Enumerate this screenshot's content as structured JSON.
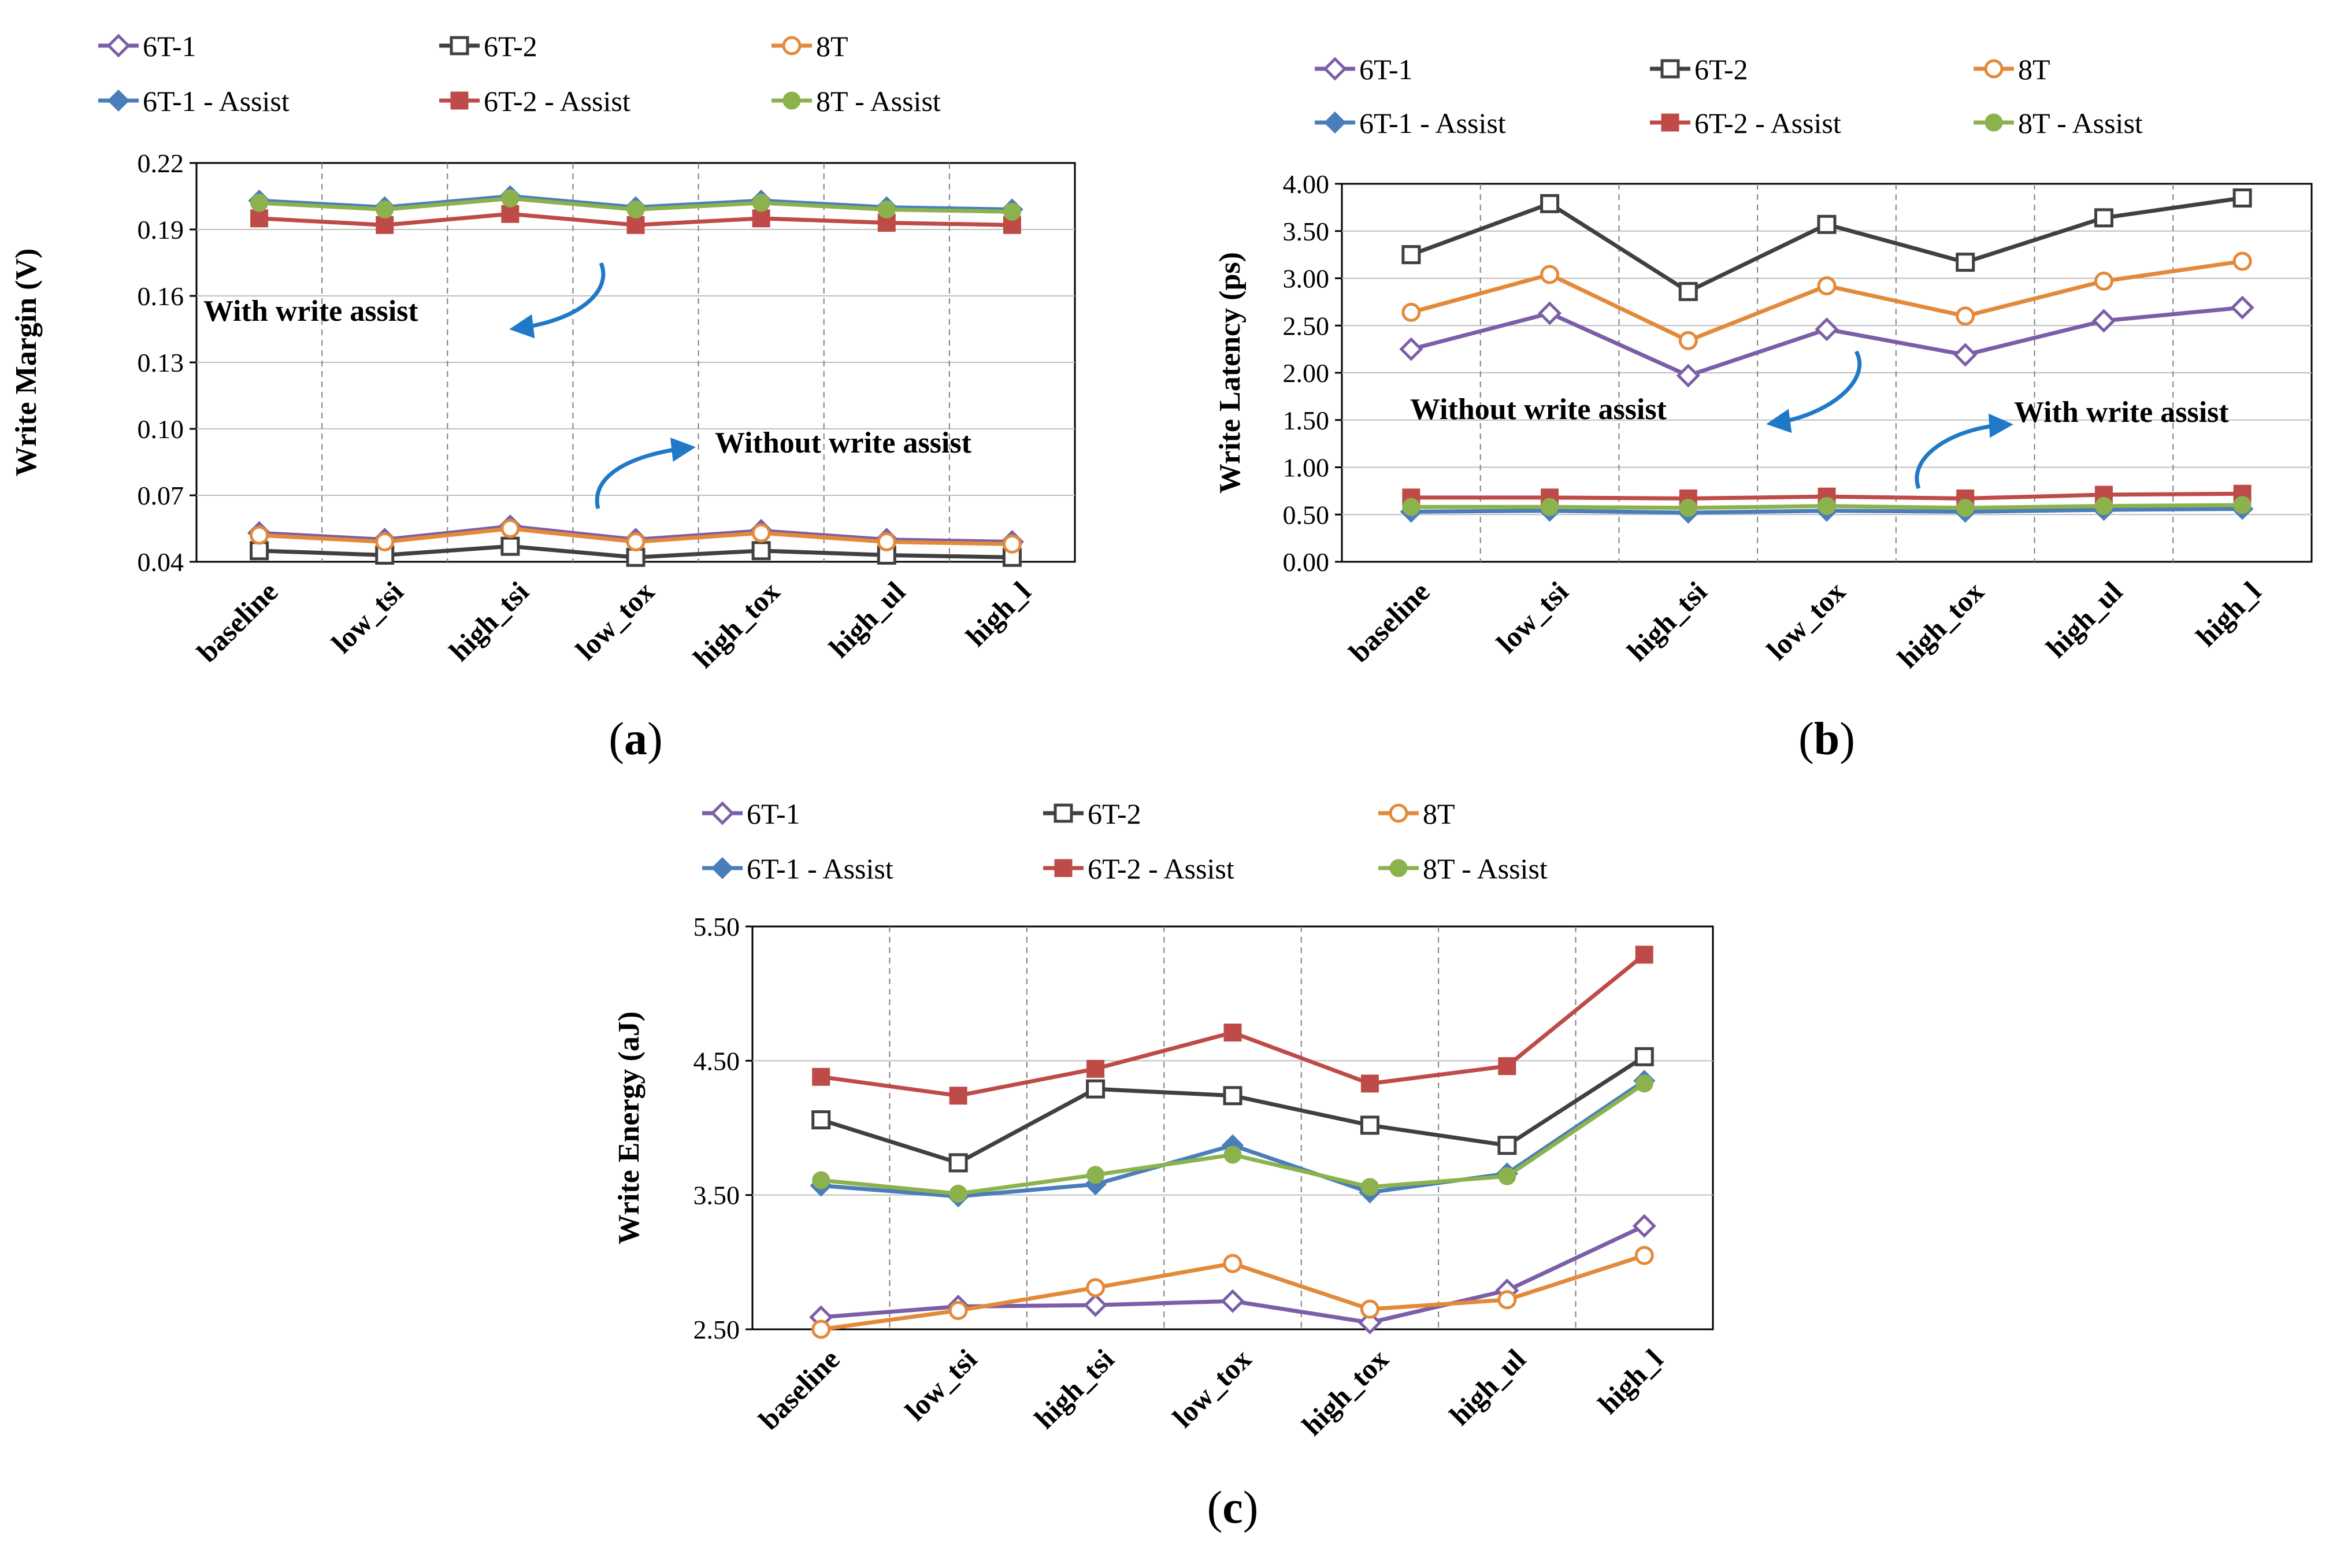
{
  "chart_data": [
    {
      "id": "a",
      "type": "line",
      "panel_label": "a",
      "title": "",
      "xlabel": "",
      "ylabel": "Write Margin (V)",
      "categories": [
        "baseline",
        "low_tsi",
        "high_tsi",
        "low_tox",
        "high_tox",
        "high_ul",
        "high_l"
      ],
      "ylim": [
        0.04,
        0.22
      ],
      "yticks": [
        0.04,
        0.07,
        0.1,
        0.13,
        0.16,
        0.19,
        0.22
      ],
      "ytick_labels": [
        "0.04",
        "0.07",
        "0.10",
        "0.13",
        "0.16",
        "0.19",
        "0.22"
      ],
      "series": [
        {
          "name": "6T-1",
          "values": [
            0.053,
            0.05,
            0.056,
            0.05,
            0.054,
            0.05,
            0.049
          ]
        },
        {
          "name": "6T-2",
          "values": [
            0.045,
            0.043,
            0.047,
            0.042,
            0.045,
            0.043,
            0.042
          ]
        },
        {
          "name": "8T",
          "values": [
            0.052,
            0.049,
            0.055,
            0.049,
            0.053,
            0.049,
            0.048
          ]
        },
        {
          "name": "6T-1 - Assist",
          "values": [
            0.203,
            0.2,
            0.205,
            0.2,
            0.203,
            0.2,
            0.199
          ]
        },
        {
          "name": "6T-2 - Assist",
          "values": [
            0.195,
            0.192,
            0.197,
            0.192,
            0.195,
            0.193,
            0.192
          ]
        },
        {
          "name": "8T - Assist",
          "values": [
            0.202,
            0.199,
            0.204,
            0.199,
            0.202,
            0.199,
            0.198
          ]
        }
      ],
      "annotations": [
        "With write assist",
        "Without write assist"
      ]
    },
    {
      "id": "b",
      "type": "line",
      "panel_label": "b",
      "title": "",
      "xlabel": "",
      "ylabel": "Write Latency (ps)",
      "categories": [
        "baseline",
        "low_tsi",
        "high_tsi",
        "low_tox",
        "high_tox",
        "high_ul",
        "high_l"
      ],
      "ylim": [
        0.0,
        4.0
      ],
      "yticks": [
        0,
        0.5,
        1,
        1.5,
        2,
        2.5,
        3,
        3.5,
        4
      ],
      "ytick_labels": [
        "0.00",
        "0.50",
        "1.00",
        "1.50",
        "2.00",
        "2.50",
        "3.00",
        "3.50",
        "4.00"
      ],
      "series": [
        {
          "name": "6T-1",
          "values": [
            2.25,
            2.63,
            1.97,
            2.46,
            2.19,
            2.55,
            2.69
          ]
        },
        {
          "name": "6T-2",
          "values": [
            3.25,
            3.79,
            2.86,
            3.57,
            3.17,
            3.64,
            3.85
          ]
        },
        {
          "name": "8T",
          "values": [
            2.64,
            3.04,
            2.34,
            2.92,
            2.6,
            2.97,
            3.18
          ]
        },
        {
          "name": "6T-1 - Assist",
          "values": [
            0.53,
            0.54,
            0.52,
            0.54,
            0.53,
            0.55,
            0.56
          ]
        },
        {
          "name": "6T-2 - Assist",
          "values": [
            0.68,
            0.68,
            0.67,
            0.69,
            0.67,
            0.71,
            0.72
          ]
        },
        {
          "name": "8T - Assist",
          "values": [
            0.58,
            0.58,
            0.57,
            0.59,
            0.57,
            0.59,
            0.6
          ]
        }
      ],
      "annotations": [
        "Without write assist",
        "With write assist"
      ]
    },
    {
      "id": "c",
      "type": "line",
      "panel_label": "c",
      "title": "",
      "xlabel": "",
      "ylabel": "Write Energy (aJ)",
      "categories": [
        "baseline",
        "low_tsi",
        "high_tsi",
        "low_tox",
        "high_tox",
        "high_ul",
        "high_l"
      ],
      "ylim": [
        2.5,
        5.5
      ],
      "yticks": [
        2.5,
        3.5,
        4.5,
        5.5
      ],
      "ytick_labels": [
        "2.50",
        "3.50",
        "4.50",
        "5.50"
      ],
      "series": [
        {
          "name": "6T-1",
          "values": [
            2.59,
            2.67,
            2.68,
            2.71,
            2.55,
            2.79,
            3.27
          ]
        },
        {
          "name": "6T-2",
          "values": [
            4.06,
            3.74,
            4.29,
            4.24,
            4.02,
            3.87,
            4.53
          ]
        },
        {
          "name": "8T",
          "values": [
            2.5,
            2.64,
            2.81,
            2.99,
            2.65,
            2.72,
            3.05
          ]
        },
        {
          "name": "6T-1 - Assist",
          "values": [
            3.57,
            3.49,
            3.58,
            3.87,
            3.52,
            3.66,
            4.35
          ]
        },
        {
          "name": "6T-2 - Assist",
          "values": [
            4.38,
            4.24,
            4.44,
            4.71,
            4.33,
            4.46,
            5.29
          ]
        },
        {
          "name": "8T - Assist",
          "values": [
            3.61,
            3.51,
            3.65,
            3.8,
            3.56,
            3.64,
            4.33
          ]
        }
      ],
      "annotations": []
    }
  ],
  "legend": {
    "entries": [
      "6T-1",
      "6T-2",
      "8T",
      "6T-1 - Assist",
      "6T-2 - Assist",
      "8T - Assist"
    ]
  },
  "series_styles": [
    {
      "name": "6T-1",
      "color": "#7b5ea7",
      "marker": "diamond-open"
    },
    {
      "name": "6T-2",
      "color": "#404040",
      "marker": "square-open"
    },
    {
      "name": "8T",
      "color": "#e3893a",
      "marker": "circle-open"
    },
    {
      "name": "6T-1 - Assist",
      "color": "#4a7ebb",
      "marker": "diamond-filled"
    },
    {
      "name": "6T-2 - Assist",
      "color": "#be4b48",
      "marker": "square-filled"
    },
    {
      "name": "8T - Assist",
      "color": "#8cb24e",
      "marker": "circle-filled"
    }
  ],
  "colors": {
    "arrow": "#1f78c8",
    "grid": "#a6a6a6",
    "axis": "#000000"
  }
}
